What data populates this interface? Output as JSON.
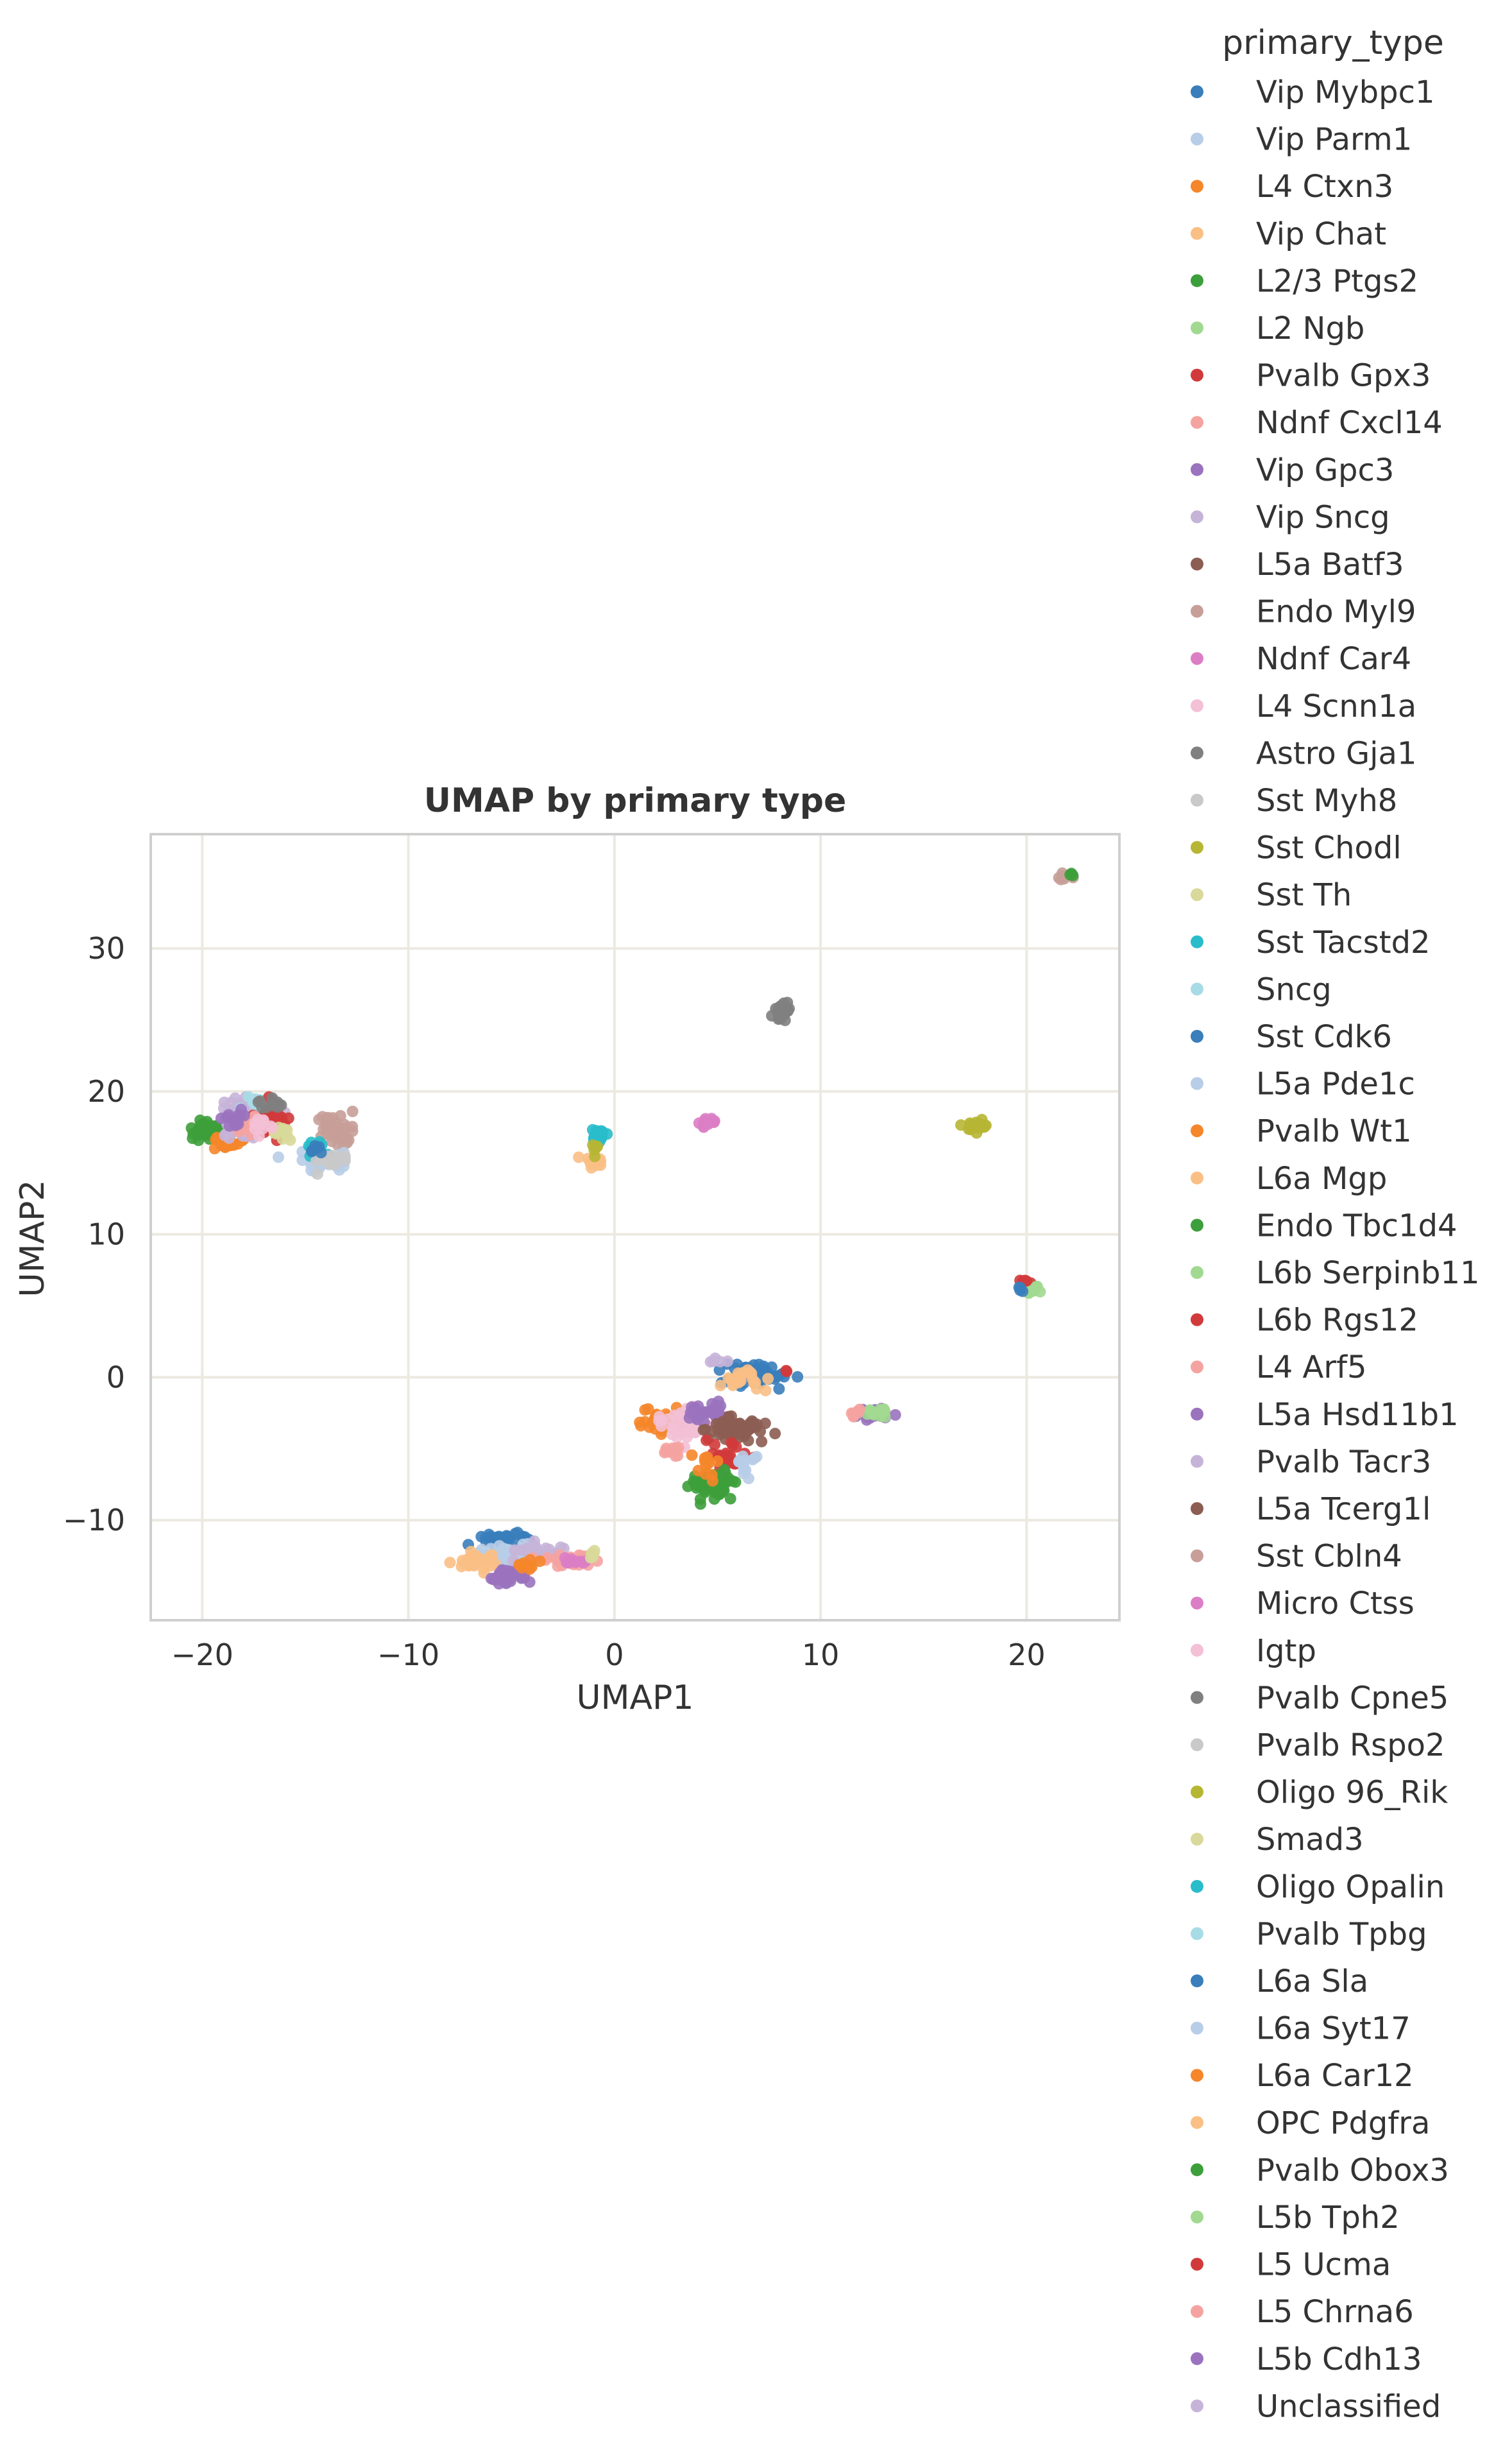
{
  "chart_data": {
    "type": "scatter",
    "title": "UMAP by primary type",
    "xlabel": "UMAP1",
    "ylabel": "UMAP2",
    "xlim": [
      -22.5,
      24.5
    ],
    "ylim": [
      -17,
      38
    ],
    "xticks": [
      -20,
      -10,
      0,
      10,
      20
    ],
    "yticks": [
      -10,
      0,
      10,
      20,
      30
    ],
    "grid": true,
    "legend": {
      "title": "primary_type",
      "placement": "outside-right",
      "entries": [
        {
          "label": "Vip Mybpc1",
          "color": "#3a7ebb"
        },
        {
          "label": "Vip Parm1",
          "color": "#b8cde7"
        },
        {
          "label": "L4 Ctxn3",
          "color": "#f5862a"
        },
        {
          "label": "Vip Chat",
          "color": "#f9bf85"
        },
        {
          "label": "L2/3 Ptgs2",
          "color": "#3d9f3b"
        },
        {
          "label": "L2 Ngb",
          "color": "#a1d990"
        },
        {
          "label": "Pvalb Gpx3",
          "color": "#d13a3b"
        },
        {
          "label": "Ndnf Cxcl14",
          "color": "#f5a3a1"
        },
        {
          "label": "Vip Gpc3",
          "color": "#9a72be"
        },
        {
          "label": "Vip Sncg",
          "color": "#c6b4d8"
        },
        {
          "label": "L5a Batf3",
          "color": "#8c5d52"
        },
        {
          "label": "Endo Myl9",
          "color": "#c79f98"
        },
        {
          "label": "Ndnf Car4",
          "color": "#dc7ec5"
        },
        {
          "label": "L4 Scnn1a",
          "color": "#f3c0d5"
        },
        {
          "label": "Astro Gja1",
          "color": "#808080"
        },
        {
          "label": "Sst Myh8",
          "color": "#c9c9c9"
        },
        {
          "label": "Sst Chodl",
          "color": "#b7b634"
        },
        {
          "label": "Sst Th",
          "color": "#d8d99a"
        },
        {
          "label": "Sst Tacstd2",
          "color": "#29bcca"
        },
        {
          "label": "Sncg",
          "color": "#a7dbe5"
        },
        {
          "label": "Sst Cdk6",
          "color": "#3a7ebb"
        },
        {
          "label": "L5a Pde1c",
          "color": "#b8cde7"
        },
        {
          "label": "Pvalb Wt1",
          "color": "#f5862a"
        },
        {
          "label": "L6a Mgp",
          "color": "#f9bf85"
        },
        {
          "label": "Endo Tbc1d4",
          "color": "#3d9f3b"
        },
        {
          "label": "L6b Serpinb11",
          "color": "#a1d990"
        },
        {
          "label": "L6b Rgs12",
          "color": "#d13a3b"
        },
        {
          "label": "L4 Arf5",
          "color": "#f5a3a1"
        },
        {
          "label": "L5a Hsd11b1",
          "color": "#9a72be"
        },
        {
          "label": "Pvalb Tacr3",
          "color": "#c6b4d8"
        },
        {
          "label": "L5a Tcerg1l",
          "color": "#8c5d52"
        },
        {
          "label": "Sst Cbln4",
          "color": "#c79f98"
        },
        {
          "label": "Micro Ctss",
          "color": "#dc7ec5"
        },
        {
          "label": "Igtp",
          "color": "#f3c0d5"
        },
        {
          "label": "Pvalb Cpne5",
          "color": "#808080"
        },
        {
          "label": "Pvalb Rspo2",
          "color": "#c9c9c9"
        },
        {
          "label": "Oligo 96_Rik",
          "color": "#b7b634"
        },
        {
          "label": "Smad3",
          "color": "#d8d99a"
        },
        {
          "label": "Oligo Opalin",
          "color": "#29bcca"
        },
        {
          "label": "Pvalb Tpbg",
          "color": "#a7dbe5"
        },
        {
          "label": "L6a Sla",
          "color": "#3a7ebb"
        },
        {
          "label": "L6a Syt17",
          "color": "#b8cde7"
        },
        {
          "label": "L6a Car12",
          "color": "#f5862a"
        },
        {
          "label": "OPC Pdgfra",
          "color": "#f9bf85"
        },
        {
          "label": "Pvalb Obox3",
          "color": "#3d9f3b"
        },
        {
          "label": "L5b Tph2",
          "color": "#a1d990"
        },
        {
          "label": "L5 Ucma",
          "color": "#d13a3b"
        },
        {
          "label": "L5 Chrna6",
          "color": "#f5a3a1"
        },
        {
          "label": "L5b Cdh13",
          "color": "#9a72be"
        },
        {
          "label": "Unclassified",
          "color": "#c6b4d8"
        }
      ]
    },
    "clusters": [
      {
        "x": -19.8,
        "y": 17.3,
        "sx": 0.35,
        "sy": 0.35,
        "n": 35,
        "color": "#3d9f3b"
      },
      {
        "x": -18.8,
        "y": 16.6,
        "sx": 0.4,
        "sy": 0.3,
        "n": 30,
        "color": "#f5862a"
      },
      {
        "x": -18.3,
        "y": 17.8,
        "sx": 0.7,
        "sy": 0.6,
        "n": 40,
        "color": "#c6b4d8"
      },
      {
        "x": -17.7,
        "y": 18.8,
        "sx": 0.6,
        "sy": 0.4,
        "n": 35,
        "color": "#c6b4d8"
      },
      {
        "x": -17.2,
        "y": 19.0,
        "sx": 0.4,
        "sy": 0.3,
        "n": 20,
        "color": "#a7dbe5"
      },
      {
        "x": -16.7,
        "y": 18.0,
        "sx": 0.4,
        "sy": 0.6,
        "n": 35,
        "color": "#d13a3b"
      },
      {
        "x": -16.6,
        "y": 19.1,
        "sx": 0.3,
        "sy": 0.2,
        "n": 12,
        "color": "#808080"
      },
      {
        "x": -17.8,
        "y": 17.5,
        "sx": 0.4,
        "sy": 0.4,
        "n": 15,
        "color": "#f5a3a1"
      },
      {
        "x": -18.5,
        "y": 18.1,
        "sx": 0.3,
        "sy": 0.3,
        "n": 12,
        "color": "#9a72be"
      },
      {
        "x": -16.0,
        "y": 17.0,
        "sx": 0.4,
        "sy": 0.3,
        "n": 10,
        "color": "#d8d99a"
      },
      {
        "x": -17.0,
        "y": 17.6,
        "sx": 0.3,
        "sy": 0.3,
        "n": 10,
        "color": "#f3c0d5"
      },
      {
        "x": -13.5,
        "y": 17.3,
        "sx": 0.45,
        "sy": 0.5,
        "n": 45,
        "color": "#c79f98"
      },
      {
        "x": -14.3,
        "y": 15.2,
        "sx": 0.7,
        "sy": 0.35,
        "n": 35,
        "color": "#b8cde7"
      },
      {
        "x": -14.5,
        "y": 15.9,
        "sx": 0.3,
        "sy": 0.3,
        "n": 12,
        "color": "#29bcca"
      },
      {
        "x": -13.8,
        "y": 15.0,
        "sx": 0.4,
        "sy": 0.3,
        "n": 15,
        "color": "#c9c9c9"
      },
      {
        "x": -14.3,
        "y": 16.0,
        "sx": 0.25,
        "sy": 0.2,
        "n": 6,
        "color": "#3a7ebb"
      },
      {
        "x": -0.8,
        "y": 16.9,
        "sx": 0.18,
        "sy": 0.25,
        "n": 18,
        "color": "#29bcca"
      },
      {
        "x": -1.2,
        "y": 15.1,
        "sx": 0.3,
        "sy": 0.2,
        "n": 12,
        "color": "#f9bf85"
      },
      {
        "x": -0.9,
        "y": 16.0,
        "sx": 0.1,
        "sy": 0.4,
        "n": 6,
        "color": "#b7b634"
      },
      {
        "x": 4.5,
        "y": 17.8,
        "sx": 0.2,
        "sy": 0.15,
        "n": 14,
        "color": "#dc7ec5"
      },
      {
        "x": 8.1,
        "y": 25.6,
        "sx": 0.2,
        "sy": 0.35,
        "n": 30,
        "color": "#808080"
      },
      {
        "x": 17.5,
        "y": 17.5,
        "sx": 0.35,
        "sy": 0.2,
        "n": 25,
        "color": "#b7b634"
      },
      {
        "x": 22.0,
        "y": 35.0,
        "sx": 0.18,
        "sy": 0.12,
        "n": 8,
        "color": "#c79f98"
      },
      {
        "x": 22.2,
        "y": 35.2,
        "sx": 0.1,
        "sy": 0.08,
        "n": 3,
        "color": "#3d9f3b"
      },
      {
        "x": 19.9,
        "y": 6.7,
        "sx": 0.15,
        "sy": 0.15,
        "n": 8,
        "color": "#d13a3b"
      },
      {
        "x": 20.4,
        "y": 6.1,
        "sx": 0.25,
        "sy": 0.15,
        "n": 10,
        "color": "#a1d990"
      },
      {
        "x": 19.6,
        "y": 6.2,
        "sx": 0.1,
        "sy": 0.1,
        "n": 4,
        "color": "#3a7ebb"
      },
      {
        "x": 6.9,
        "y": 0.2,
        "sx": 0.9,
        "sy": 0.4,
        "n": 55,
        "color": "#3a7ebb"
      },
      {
        "x": 6.2,
        "y": -0.1,
        "sx": 0.5,
        "sy": 0.35,
        "n": 25,
        "color": "#f9bf85"
      },
      {
        "x": 5.0,
        "y": 1.1,
        "sx": 0.2,
        "sy": 0.1,
        "n": 5,
        "color": "#c6b4d8"
      },
      {
        "x": 8.5,
        "y": 0.4,
        "sx": 0.1,
        "sy": 0.1,
        "n": 2,
        "color": "#d13a3b"
      },
      {
        "x": 2.3,
        "y": -3.1,
        "sx": 0.55,
        "sy": 0.45,
        "n": 45,
        "color": "#f5862a"
      },
      {
        "x": 3.5,
        "y": -3.1,
        "sx": 0.6,
        "sy": 0.6,
        "n": 45,
        "color": "#f3c0d5"
      },
      {
        "x": 4.4,
        "y": -2.4,
        "sx": 0.5,
        "sy": 0.3,
        "n": 30,
        "color": "#9a72be"
      },
      {
        "x": 6.1,
        "y": -3.6,
        "sx": 0.75,
        "sy": 0.4,
        "n": 55,
        "color": "#8c5d52"
      },
      {
        "x": 5.6,
        "y": -5.6,
        "sx": 0.5,
        "sy": 0.5,
        "n": 20,
        "color": "#d13a3b"
      },
      {
        "x": 4.7,
        "y": -7.5,
        "sx": 0.6,
        "sy": 0.5,
        "n": 60,
        "color": "#3d9f3b"
      },
      {
        "x": 6.3,
        "y": -5.9,
        "sx": 0.3,
        "sy": 0.5,
        "n": 12,
        "color": "#b8cde7"
      },
      {
        "x": 4.4,
        "y": -6.1,
        "sx": 0.4,
        "sy": 0.4,
        "n": 12,
        "color": "#f5862a"
      },
      {
        "x": 3.0,
        "y": -5.1,
        "sx": 0.3,
        "sy": 0.3,
        "n": 10,
        "color": "#f5a3a1"
      },
      {
        "x": 12.6,
        "y": -2.6,
        "sx": 0.45,
        "sy": 0.2,
        "n": 28,
        "color": "#9a72be"
      },
      {
        "x": 12.7,
        "y": -2.3,
        "sx": 0.35,
        "sy": 0.2,
        "n": 15,
        "color": "#a1d990"
      },
      {
        "x": 11.5,
        "y": -2.5,
        "sx": 0.25,
        "sy": 0.12,
        "n": 8,
        "color": "#f5a3a1"
      },
      {
        "x": -5.5,
        "y": -11.3,
        "sx": 0.6,
        "sy": 0.2,
        "n": 30,
        "color": "#3a7ebb"
      },
      {
        "x": -5.2,
        "y": -12.6,
        "sx": 0.7,
        "sy": 0.45,
        "n": 40,
        "color": "#b8cde7"
      },
      {
        "x": -6.8,
        "y": -12.8,
        "sx": 0.5,
        "sy": 0.3,
        "n": 30,
        "color": "#f9bf85"
      },
      {
        "x": -5.1,
        "y": -13.9,
        "sx": 0.4,
        "sy": 0.3,
        "n": 30,
        "color": "#9a72be"
      },
      {
        "x": -3.8,
        "y": -12.2,
        "sx": 0.6,
        "sy": 0.3,
        "n": 25,
        "color": "#c6b4d8"
      },
      {
        "x": -2.3,
        "y": -12.8,
        "sx": 0.7,
        "sy": 0.2,
        "n": 25,
        "color": "#f5a3a1"
      },
      {
        "x": -1.9,
        "y": -12.9,
        "sx": 0.3,
        "sy": 0.15,
        "n": 12,
        "color": "#dc7ec5"
      },
      {
        "x": -1.1,
        "y": -12.5,
        "sx": 0.15,
        "sy": 0.2,
        "n": 6,
        "color": "#d8d99a"
      },
      {
        "x": -4.3,
        "y": -13.2,
        "sx": 0.4,
        "sy": 0.2,
        "n": 10,
        "color": "#f5862a"
      }
    ]
  }
}
